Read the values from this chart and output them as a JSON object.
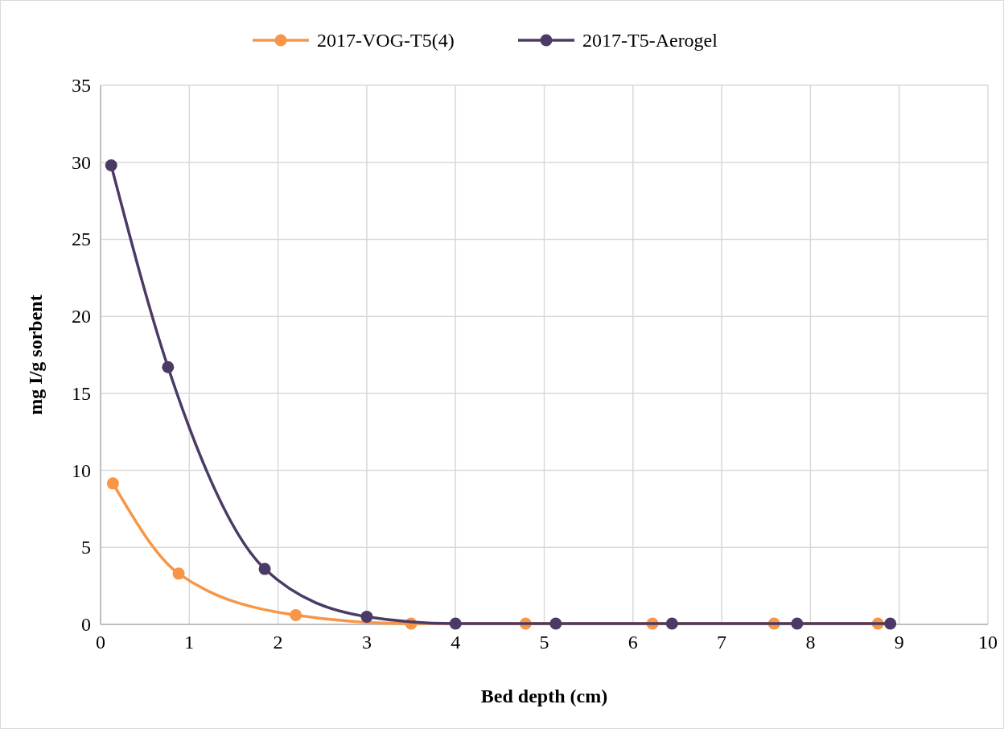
{
  "chart_data": {
    "type": "line",
    "xlabel": "Bed depth (cm)",
    "ylabel": "mg I/g sorbent",
    "xlim": [
      0,
      10
    ],
    "xticks": [
      0,
      1,
      2,
      3,
      4,
      5,
      6,
      7,
      8,
      9,
      10
    ],
    "ylim": [
      0,
      35
    ],
    "yticks": [
      0,
      5,
      10,
      15,
      20,
      25,
      30,
      35
    ],
    "grid": true,
    "legend": "top",
    "marker": "circle",
    "line_style": "solid",
    "series": [
      {
        "name": "2017-VOG-T5(4)",
        "color": "#f79646",
        "x": [
          0.14,
          0.88,
          2.2,
          3.5,
          4.79,
          6.22,
          7.59,
          8.76
        ],
        "values": [
          9.15,
          3.3,
          0.6,
          0.05,
          0.05,
          0.05,
          0.05,
          0.05
        ]
      },
      {
        "name": "2017-T5-Aerogel",
        "color": "#4b3a66",
        "x": [
          0.12,
          0.76,
          1.85,
          3.0,
          4.0,
          5.13,
          6.44,
          7.85,
          8.9
        ],
        "values": [
          29.8,
          16.7,
          3.6,
          0.5,
          0.05,
          0.05,
          0.05,
          0.05,
          0.05
        ]
      }
    ]
  }
}
